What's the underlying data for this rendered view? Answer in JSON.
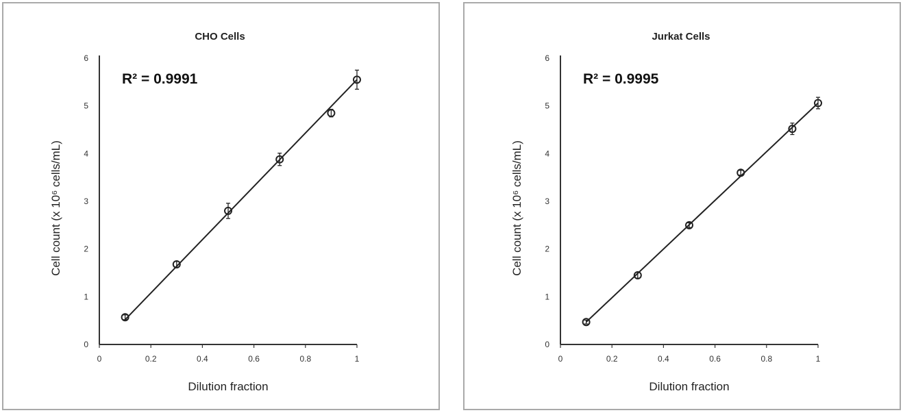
{
  "chart_data": [
    {
      "type": "scatter",
      "title": "CHO Cells",
      "xlabel": "Dilution fraction",
      "ylabel": "Cell count (x 10⁶ cells/mL)",
      "xlim": [
        0,
        1
      ],
      "ylim": [
        0,
        6
      ],
      "xticks": [
        "0",
        "0.2",
        "0.4",
        "0.6",
        "0.8",
        "1"
      ],
      "yticks": [
        "0",
        "1",
        "2",
        "3",
        "4",
        "5",
        "6"
      ],
      "annotation": "R² = 0.9991",
      "grid": false,
      "marker": "open-circle",
      "color": "#222222",
      "series": [
        {
          "x": [
            0.1,
            0.3,
            0.5,
            0.7,
            0.9,
            1.0
          ],
          "y": [
            0.57,
            1.68,
            2.8,
            3.88,
            4.85,
            5.55
          ],
          "error": [
            0.05,
            0.06,
            0.16,
            0.13,
            0.08,
            0.2
          ]
        }
      ],
      "trendline": {
        "x": [
          0.1,
          1.0
        ],
        "y": [
          0.52,
          5.55
        ]
      }
    },
    {
      "type": "scatter",
      "title": "Jurkat Cells",
      "xlabel": "Dilution fraction",
      "ylabel": "Cell count (x 10⁶ cells/mL)",
      "xlim": [
        0,
        1
      ],
      "ylim": [
        0,
        6
      ],
      "xticks": [
        "0",
        "0.2",
        "0.4",
        "0.6",
        "0.8",
        "1"
      ],
      "yticks": [
        "0",
        "1",
        "2",
        "3",
        "4",
        "5",
        "6"
      ],
      "annotation": "R² = 0.9995",
      "grid": false,
      "marker": "open-circle",
      "color": "#222222",
      "series": [
        {
          "x": [
            0.1,
            0.3,
            0.5,
            0.7,
            0.9,
            1.0
          ],
          "y": [
            0.47,
            1.45,
            2.5,
            3.6,
            4.52,
            5.06
          ],
          "error": [
            0.04,
            0.06,
            0.05,
            0.05,
            0.12,
            0.12
          ]
        }
      ],
      "trendline": {
        "x": [
          0.1,
          1.0
        ],
        "y": [
          0.47,
          5.06
        ]
      }
    }
  ]
}
